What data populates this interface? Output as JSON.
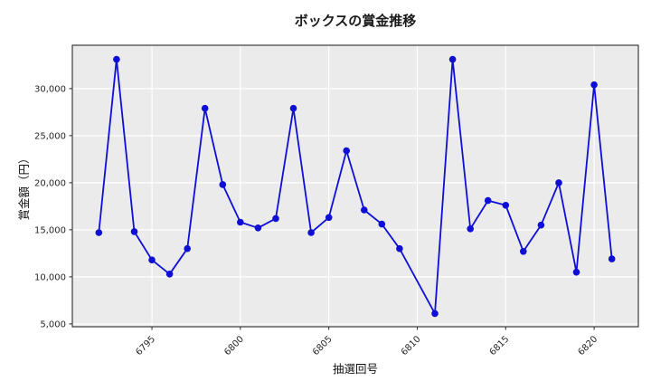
{
  "chart_data": {
    "type": "line",
    "title": "ボックスの賞金推移",
    "xlabel": "抽選回号",
    "ylabel": "賞金額（円）",
    "x": [
      6792,
      6793,
      6794,
      6795,
      6796,
      6797,
      6798,
      6799,
      6800,
      6801,
      6802,
      6803,
      6804,
      6805,
      6806,
      6807,
      6808,
      6809,
      6811,
      6812,
      6813,
      6814,
      6815,
      6816,
      6817,
      6818,
      6819,
      6820,
      6821
    ],
    "y": [
      14700,
      33100,
      14800,
      11800,
      10300,
      13000,
      27900,
      19800,
      15800,
      15200,
      16200,
      27900,
      14700,
      16300,
      23400,
      17100,
      15600,
      13000,
      6100,
      33100,
      15100,
      18100,
      17600,
      12700,
      15500,
      20000,
      10500,
      30400,
      11900
    ],
    "xlim": [
      6790.5,
      6822.5
    ],
    "ylim": [
      4700,
      34600
    ],
    "xticks": [
      6795,
      6800,
      6805,
      6810,
      6815,
      6820
    ],
    "xtick_labels": [
      "6795",
      "6800",
      "6805",
      "6810",
      "6815",
      "6820"
    ],
    "yticks": [
      5000,
      10000,
      15000,
      20000,
      25000,
      30000
    ],
    "ytick_labels": [
      "5,000",
      "10,000",
      "15,000",
      "20,000",
      "25,000",
      "30,000"
    ],
    "grid": true,
    "legend": "none",
    "line_color": "#0e0ed6",
    "marker": "circle",
    "plot_bg": "#ebebeb",
    "grid_color": "#ffffff",
    "spine_color": "#2b2b2b",
    "tick_label_color": "#262626"
  }
}
